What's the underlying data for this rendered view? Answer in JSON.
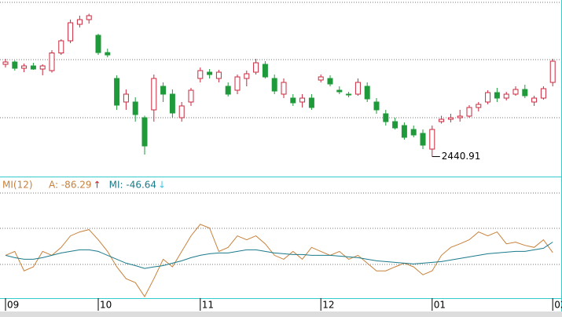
{
  "chart_data": [
    {
      "type": "candlestick",
      "up_color": "#c8283c",
      "down_color": "#1f9a3a",
      "ylim": [
        2390,
        2840
      ],
      "open": [
        2676,
        2682,
        2666,
        2672,
        2664,
        2660,
        2705,
        2736,
        2778,
        2790,
        2750,
        2706,
        2640,
        2580,
        2580,
        2540,
        2560,
        2620,
        2600,
        2540,
        2580,
        2640,
        2656,
        2640,
        2620,
        2610,
        2640,
        2656,
        2676,
        2640,
        2600,
        2590,
        2580,
        2590,
        2636,
        2640,
        2610,
        2600,
        2600,
        2620,
        2580,
        2550,
        2530,
        2520,
        2510,
        2500,
        2460,
        2530,
        2536,
        2540,
        2544,
        2566,
        2580,
        2604,
        2590,
        2600,
        2612,
        2580,
        2590,
        2630
      ],
      "high": [
        2690,
        2686,
        2678,
        2680,
        2676,
        2712,
        2740,
        2790,
        2800,
        2805,
        2754,
        2716,
        2648,
        2612,
        2592,
        2545,
        2650,
        2630,
        2612,
        2580,
        2616,
        2668,
        2664,
        2662,
        2630,
        2650,
        2660,
        2690,
        2684,
        2650,
        2640,
        2600,
        2600,
        2600,
        2650,
        2648,
        2620,
        2606,
        2640,
        2630,
        2590,
        2560,
        2540,
        2528,
        2520,
        2510,
        2520,
        2545,
        2550,
        2560,
        2572,
        2580,
        2610,
        2616,
        2606,
        2620,
        2624,
        2596,
        2620,
        2690
      ],
      "low": [
        2668,
        2660,
        2656,
        2662,
        2648,
        2655,
        2700,
        2730,
        2770,
        2780,
        2700,
        2694,
        2560,
        2560,
        2530,
        2446,
        2530,
        2580,
        2540,
        2530,
        2570,
        2630,
        2640,
        2630,
        2594,
        2600,
        2620,
        2650,
        2640,
        2600,
        2590,
        2570,
        2566,
        2560,
        2630,
        2620,
        2600,
        2592,
        2596,
        2580,
        2550,
        2520,
        2510,
        2484,
        2490,
        2460,
        2440.91,
        2525,
        2528,
        2530,
        2540,
        2556,
        2574,
        2580,
        2584,
        2596,
        2590,
        2570,
        2586,
        2620
      ],
      "close": [
        2682,
        2666,
        2672,
        2664,
        2672,
        2705,
        2736,
        2782,
        2790,
        2800,
        2706,
        2700,
        2572,
        2600,
        2548,
        2468,
        2640,
        2600,
        2552,
        2570,
        2610,
        2660,
        2650,
        2656,
        2600,
        2644,
        2652,
        2680,
        2644,
        2608,
        2630,
        2578,
        2590,
        2566,
        2644,
        2626,
        2606,
        2598,
        2630,
        2588,
        2560,
        2530,
        2514,
        2490,
        2496,
        2470,
        2510,
        2536,
        2540,
        2544,
        2566,
        2574,
        2604,
        2590,
        2600,
        2612,
        2596,
        2590,
        2614,
        2684
      ],
      "low_label": "2440.91",
      "x_labels": [
        {
          "value": 0,
          "label": "09"
        },
        {
          "value": 10,
          "label": "10"
        },
        {
          "value": 21,
          "label": "11"
        },
        {
          "value": 34,
          "label": "12"
        },
        {
          "value": 46,
          "label": "01"
        },
        {
          "value": 59,
          "label": "02"
        }
      ]
    },
    {
      "type": "line",
      "title": "MI(12)",
      "ylim": [
        -260,
        140
      ],
      "series": [
        {
          "name": "A: -86.29",
          "arrow": "↑",
          "arrow_color": "#d02020",
          "color": "#c8803a",
          "values": [
            -97,
            -82,
            -156,
            -141,
            -82,
            -97,
            -67,
            -23,
            -8,
            1,
            -38,
            -82,
            -141,
            -186,
            -201,
            -254,
            -186,
            -112,
            -141,
            -82,
            -23,
            21,
            7,
            -82,
            -67,
            -23,
            -38,
            -23,
            -53,
            -97,
            -112,
            -82,
            -112,
            -67,
            -82,
            -97,
            -82,
            -112,
            -97,
            -127,
            -156,
            -156,
            -141,
            -127,
            -141,
            -171,
            -156,
            -97,
            -67,
            -53,
            -38,
            -8,
            -23,
            -8,
            -53,
            -47,
            -59,
            -67,
            -38,
            -86.29
          ]
        },
        {
          "name": "MI: -46.64",
          "arrow": "↓",
          "arrow_color": "#40c8e0",
          "color": "#1a7a8a",
          "values": [
            -97,
            -106,
            -112,
            -112,
            -106,
            -97,
            -88,
            -82,
            -76,
            -76,
            -82,
            -97,
            -112,
            -127,
            -136,
            -147,
            -141,
            -136,
            -127,
            -118,
            -106,
            -97,
            -91,
            -88,
            -88,
            -82,
            -76,
            -76,
            -82,
            -88,
            -91,
            -94,
            -94,
            -97,
            -97,
            -97,
            -100,
            -103,
            -106,
            -112,
            -118,
            -121,
            -124,
            -127,
            -130,
            -127,
            -124,
            -121,
            -115,
            -109,
            -103,
            -97,
            -91,
            -88,
            -85,
            -82,
            -82,
            -76,
            -70,
            -46.64
          ]
        }
      ]
    }
  ]
}
